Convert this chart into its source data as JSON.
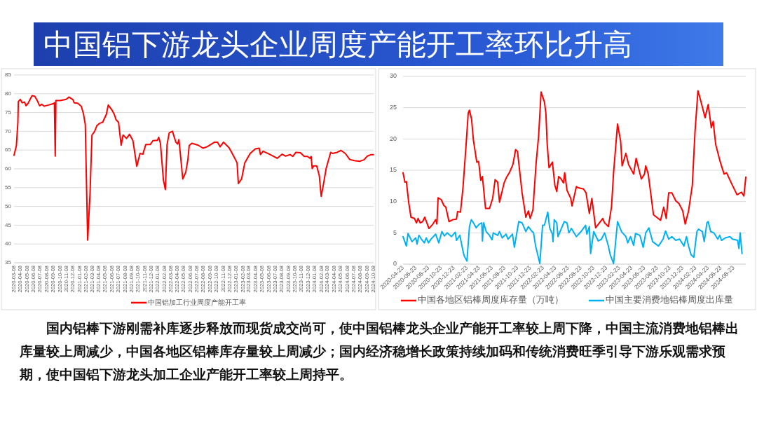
{
  "chart_data": [
    {
      "type": "other",
      "title": "中国铝下游龙头企业周度产能开工率环比升高",
      "annotations": [
        "国内铝棒下游刚需补库逐步释放而现货成交尚可，使中国铝棒龙头企业产能开工率较上周下降，中国主流消费地铝棒出库量较上周减少，中国各地区铝棒库存量较上周减少；国内经济稳增长政策持续加码和传统消费旺季引导下游乐观需求预期，使中国铝下游龙头加工企业产能开工率较上周持平。"
      ]
    },
    {
      "type": "line",
      "grid": "y",
      "legend": "bottom",
      "xlim": [
        "2020-03-08",
        "2024-10-08"
      ],
      "ylim": [
        35,
        85
      ],
      "yticks": [
        35,
        40,
        45,
        50,
        55,
        60,
        65,
        70,
        75,
        80,
        85
      ],
      "xticks": [
        "2020-03-08",
        "2020-04-08",
        "2020-05-08",
        "2020-06-08",
        "2020-07-08",
        "2020-08-08",
        "2020-09-08",
        "2020-10-08",
        "2020-11-08",
        "2020-12-08",
        "2021-01-08",
        "2021-02-08",
        "2021-03-08",
        "2021-04-08",
        "2021-05-08",
        "2021-06-08",
        "2021-07-08",
        "2021-08-08",
        "2021-09-08",
        "2021-10-08",
        "2021-11-08",
        "2021-12-08",
        "2022-01-08",
        "2022-02-08",
        "2022-03-08",
        "2022-04-08",
        "2022-05-08",
        "2022-06-08",
        "2022-07-08",
        "2022-08-08",
        "2022-09-08",
        "2022-10-08",
        "2022-11-08",
        "2022-12-08",
        "2023-01-08",
        "2023-02-08",
        "2023-03-08",
        "2023-04-08",
        "2023-05-08",
        "2023-06-08",
        "2023-07-08",
        "2023-08-08",
        "2023-09-08",
        "2023-10-08",
        "2023-11-08",
        "2023-12-08",
        "2024-01-08",
        "2024-02-08",
        "2024-03-08",
        "2024-04-08",
        "2024-05-08",
        "2024-06-08",
        "2024-07-08",
        "2024-08-08",
        "2024-09-08",
        "2024-10-08"
      ],
      "x": [
        "2020-03-08",
        "2020-03-19",
        "2020-03-26",
        "2020-03-28",
        "2020-04-06",
        "2020-04-15",
        "2020-04-26",
        "2020-05-03",
        "2020-05-12",
        "2020-05-31",
        "2020-06-13",
        "2020-06-24",
        "2020-07-05",
        "2020-07-15",
        "2020-07-26",
        "2020-08-17",
        "2020-09-08",
        "2020-09-12",
        "2020-09-16",
        "2020-09-19",
        "2020-10-09",
        "2020-11-06",
        "2020-11-19",
        "2020-12-08",
        "2020-12-13",
        "2020-12-29",
        "2021-01-15",
        "2021-01-25",
        "2021-02-03",
        "2021-02-14",
        "2021-02-25",
        "2021-03-06",
        "2021-03-18",
        "2021-03-29",
        "2021-04-10",
        "2021-04-25",
        "2021-05-12",
        "2021-05-21",
        "2021-06-09",
        "2021-06-18",
        "2021-06-27",
        "2021-07-08",
        "2021-07-20",
        "2021-07-29",
        "2021-08-14",
        "2021-08-28",
        "2021-09-13",
        "2021-10-01",
        "2021-10-16",
        "2021-10-29",
        "2021-11-12",
        "2021-12-03",
        "2021-12-15",
        "2022-01-05",
        "2022-01-11",
        "2022-01-19",
        "2022-02-02",
        "2022-02-11",
        "2022-02-19",
        "2022-03-01",
        "2022-03-16",
        "2022-04-01",
        "2022-04-09",
        "2022-04-15",
        "2022-04-21",
        "2022-05-03",
        "2022-05-17",
        "2022-05-27",
        "2022-06-02",
        "2022-06-14",
        "2022-07-14",
        "2022-08-05",
        "2022-08-25",
        "2022-09-28",
        "2022-10-12",
        "2022-10-24",
        "2022-11-09",
        "2022-12-05",
        "2022-12-26",
        "2023-01-11",
        "2023-01-17",
        "2023-02-01",
        "2023-02-16",
        "2023-03-13",
        "2023-04-06",
        "2023-04-24",
        "2023-04-30",
        "2023-05-12",
        "2023-06-11",
        "2023-07-17",
        "2023-08-09",
        "2023-08-25",
        "2023-09-15",
        "2023-09-27",
        "2023-10-12",
        "2023-11-02",
        "2023-11-20",
        "2023-12-05",
        "2023-12-17",
        "2023-12-22",
        "2023-12-27",
        "2024-01-02",
        "2024-01-17",
        "2024-01-29",
        "2024-02-07",
        "2024-02-18",
        "2024-03-01",
        "2024-03-22",
        "2024-03-30",
        "2024-04-21",
        "2024-05-09",
        "2024-05-29",
        "2024-06-19",
        "2024-07-10",
        "2024-08-03",
        "2024-08-24",
        "2024-09-09",
        "2024-09-27",
        "2024-10-07"
      ],
      "series": [
        {
          "name": "中国铝加工行业周度产能开工率",
          "color": "#ff0000",
          "values": [
            63.6,
            66.2,
            72.4,
            77.9,
            78.5,
            77.6,
            77.8,
            76.8,
            77.4,
            79.5,
            79.3,
            78.2,
            76.8,
            77.2,
            76.7,
            77.0,
            77.4,
            77.6,
            63.4,
            78.2,
            78.2,
            78.5,
            79.1,
            78.4,
            77.6,
            77.5,
            76.7,
            74.8,
            71.8,
            41.0,
            53.3,
            69.0,
            69.9,
            71.5,
            72.1,
            72.4,
            74.5,
            77.0,
            75.5,
            74.5,
            73.0,
            72.4,
            66.3,
            69.0,
            68.1,
            69.2,
            67.5,
            60.7,
            64.1,
            63.9,
            66.5,
            66.5,
            67.5,
            67.6,
            68.4,
            66.8,
            57.0,
            54.5,
            66.5,
            69.6,
            70.0,
            67.1,
            66.6,
            67.8,
            64.5,
            57.3,
            59.1,
            62.5,
            66.2,
            66.8,
            66.3,
            65.5,
            65.9,
            67.1,
            67.1,
            65.9,
            67.1,
            65.6,
            63.4,
            61.6,
            56.1,
            57.3,
            61.6,
            64.1,
            65.3,
            65.5,
            63.8,
            64.7,
            63.9,
            62.8,
            63.9,
            63.4,
            63.8,
            63.3,
            64.4,
            64.3,
            63.3,
            63.3,
            62.8,
            63.3,
            60.1,
            60.8,
            60.8,
            58.2,
            52.7,
            56.1,
            60.1,
            64.4,
            64.1,
            64.4,
            64.9,
            64.1,
            62.5,
            62.2,
            62.0,
            62.4,
            63.4,
            63.8,
            63.8
          ]
        }
      ]
    },
    {
      "type": "line",
      "grid": "y",
      "legend": "bottom",
      "xlim": [
        "2020-04-23",
        "2024-10-20"
      ],
      "ylim": [
        0,
        30
      ],
      "yticks": [
        0,
        5,
        10,
        15,
        20,
        25,
        30
      ],
      "xticks": [
        "2020-04-23",
        "2020-06-23",
        "2020-08-23",
        "2020-10-23",
        "2020-12-23",
        "2021-02-23",
        "2021-04-23",
        "2021-06-23",
        "2021-08-23",
        "2021-10-23",
        "2021-12-23",
        "2022-02-23",
        "2022-04-23",
        "2022-06-23",
        "2022-08-23",
        "2022-10-23",
        "2022-12-23",
        "2023-02-23",
        "2023-04-23",
        "2023-06-23",
        "2023-08-23",
        "2023-10-23",
        "2023-12-23",
        "2024-02-23",
        "2024-04-23",
        "2024-06-23",
        "2024-08-23"
      ],
      "series": [
        {
          "name": "中国各地区铝棒周度库存量（万吨）",
          "color": "#ff0000",
          "x": [
            "2020-04-23",
            "2020-05-02",
            "2020-05-09",
            "2020-05-20",
            "2020-05-31",
            "2020-06-17",
            "2020-06-26",
            "2020-07-04",
            "2020-07-14",
            "2020-07-26",
            "2020-08-05",
            "2020-08-25",
            "2020-09-13",
            "2020-09-26",
            "2020-10-02",
            "2020-10-08",
            "2020-10-23",
            "2020-11-04",
            "2020-11-14",
            "2020-11-29",
            "2020-12-17",
            "2021-01-04",
            "2021-01-09",
            "2021-01-23",
            "2021-02-04",
            "2021-02-20",
            "2021-03-01",
            "2021-03-07",
            "2021-03-17",
            "2021-03-26",
            "2021-04-11",
            "2021-04-20",
            "2021-04-30",
            "2021-05-08",
            "2021-05-23",
            "2021-06-11",
            "2021-06-26",
            "2021-07-08",
            "2021-07-20",
            "2021-07-29",
            "2021-08-20",
            "2021-09-01",
            "2021-09-14",
            "2021-10-01",
            "2021-10-14",
            "2021-10-23",
            "2021-11-14",
            "2021-12-02",
            "2021-12-14",
            "2021-12-23",
            "2022-01-05",
            "2022-01-20",
            "2022-02-01",
            "2022-02-13",
            "2022-03-01",
            "2022-03-08",
            "2022-03-14",
            "2022-03-23",
            "2022-04-08",
            "2022-04-20",
            "2022-04-29",
            "2022-05-08",
            "2022-05-20",
            "2022-05-31",
            "2022-06-06",
            "2022-06-17",
            "2022-07-05",
            "2022-07-11",
            "2022-08-01",
            "2022-08-10",
            "2022-09-04",
            "2022-09-16",
            "2022-10-02",
            "2022-10-14",
            "2022-11-01",
            "2022-11-10",
            "2022-12-05",
            "2022-12-14",
            "2023-01-01",
            "2023-01-16",
            "2023-01-26",
            "2023-02-14",
            "2023-03-01",
            "2023-03-08",
            "2023-03-26",
            "2023-04-08",
            "2023-05-02",
            "2023-05-14",
            "2023-06-08",
            "2023-06-23",
            "2023-06-29",
            "2023-07-11",
            "2023-08-05",
            "2023-08-20",
            "2023-09-08",
            "2023-09-23",
            "2023-10-05",
            "2023-10-17",
            "2023-11-01",
            "2023-11-20",
            "2023-12-05",
            "2023-12-23",
            "2024-01-04",
            "2024-01-20",
            "2024-02-07",
            "2024-02-20",
            "2024-03-05",
            "2024-03-20",
            "2024-04-08",
            "2024-04-23",
            "2024-05-08",
            "2024-05-17",
            "2024-05-29",
            "2024-06-20",
            "2024-07-08",
            "2024-07-20",
            "2024-08-14",
            "2024-09-08",
            "2024-09-29",
            "2024-10-11",
            "2024-10-20"
          ],
          "values": [
            14.6,
            13.1,
            13.2,
            9.9,
            7.5,
            7.3,
            6.6,
            7.3,
            6.6,
            6.8,
            7.5,
            5.7,
            6.4,
            7.1,
            6.4,
            10.6,
            10.3,
            9.4,
            9.1,
            6.8,
            7.1,
            7.2,
            8.4,
            8.3,
            12.2,
            19.6,
            24.1,
            24.6,
            23.2,
            19.8,
            16.3,
            16.4,
            13.4,
            14.0,
            8.9,
            8.9,
            10.5,
            13.5,
            13.1,
            9.9,
            13.0,
            13.9,
            14.6,
            15.9,
            18.3,
            18.0,
            11.4,
            7.5,
            8.5,
            7.3,
            8.7,
            16.1,
            20.4,
            27.5,
            25.9,
            24.1,
            19.3,
            15.4,
            16.3,
            12.6,
            11.6,
            14.0,
            13.6,
            13.0,
            14.6,
            11.8,
            10.5,
            9.3,
            12.4,
            12.2,
            12.0,
            11.4,
            8.1,
            10.5,
            5.8,
            6.2,
            7.3,
            6.6,
            6.0,
            9.1,
            14.6,
            22.4,
            19.6,
            15.7,
            17.7,
            15.9,
            14.4,
            16.9,
            13.6,
            14.4,
            15.7,
            14.4,
            7.9,
            7.5,
            7.0,
            9.1,
            7.3,
            11.4,
            11.4,
            10.1,
            9.7,
            8.5,
            6.4,
            8.5,
            12.6,
            21.2,
            27.7,
            25.9,
            23.4,
            25.5,
            21.8,
            22.8,
            19.1,
            16.3,
            14.4,
            14.6,
            12.8,
            11.1,
            11.5,
            10.9,
            13.9
          ]
        },
        {
          "name": "中国主要消费地铝棒周度出库量",
          "color": "#00b0f0",
          "x": [
            "2020-04-23",
            "2020-05-09",
            "2020-05-17",
            "2020-06-05",
            "2020-06-23",
            "2020-06-29",
            "2020-07-08",
            "2020-07-20",
            "2020-08-03",
            "2020-08-12",
            "2020-08-23",
            "2020-09-04",
            "2020-09-26",
            "2020-10-11",
            "2020-10-26",
            "2020-11-07",
            "2020-11-20",
            "2020-12-11",
            "2020-12-29",
            "2021-01-04",
            "2021-01-20",
            "2021-02-04",
            "2021-02-10",
            "2021-02-23",
            "2021-03-07",
            "2021-03-16",
            "2021-03-26",
            "2021-04-08",
            "2021-04-23",
            "2021-05-05",
            "2021-05-08",
            "2021-05-14",
            "2021-05-26",
            "2021-06-11",
            "2021-06-23",
            "2021-06-29",
            "2021-07-20",
            "2021-07-29",
            "2021-08-11",
            "2021-08-29",
            "2021-09-08",
            "2021-09-29",
            "2021-10-08",
            "2021-10-29",
            "2021-11-14",
            "2021-12-02",
            "2021-12-14",
            "2022-01-01",
            "2022-01-08",
            "2022-01-17",
            "2022-02-07",
            "2022-02-20",
            "2022-03-01",
            "2022-03-17",
            "2022-03-26",
            "2022-04-08",
            "2022-04-11",
            "2022-04-17",
            "2022-04-29",
            "2022-05-05",
            "2022-05-20",
            "2022-06-04",
            "2022-06-17",
            "2022-06-26",
            "2022-07-08",
            "2022-08-01",
            "2022-08-23",
            "2022-09-14",
            "2022-09-20",
            "2022-10-02",
            "2022-10-08",
            "2022-10-23",
            "2022-11-14",
            "2022-11-29",
            "2022-12-14",
            "2023-01-01",
            "2023-01-10",
            "2023-01-26",
            "2023-02-14",
            "2023-03-05",
            "2023-03-26",
            "2023-04-04",
            "2023-04-17",
            "2023-05-02",
            "2023-05-11",
            "2023-06-01",
            "2023-06-17",
            "2023-06-29",
            "2023-07-14",
            "2023-08-01",
            "2023-08-29",
            "2023-09-20",
            "2023-10-02",
            "2023-10-17",
            "2023-11-01",
            "2023-11-20",
            "2023-12-08",
            "2023-12-29",
            "2024-01-10",
            "2024-01-20",
            "2024-02-01",
            "2024-02-14",
            "2024-02-29",
            "2024-03-08",
            "2024-03-26",
            "2024-04-04",
            "2024-04-17",
            "2024-04-23",
            "2024-05-05",
            "2024-05-20",
            "2024-06-08",
            "2024-06-17",
            "2024-06-26",
            "2024-07-14",
            "2024-08-05",
            "2024-08-17",
            "2024-09-11",
            "2024-09-17",
            "2024-09-23",
            "2024-10-02"
          ],
          "values": [
            4.4,
            2.9,
            4.9,
            3.6,
            4.2,
            3.2,
            4.6,
            4.0,
            3.4,
            4.2,
            3.4,
            4.0,
            4.8,
            3.4,
            5.2,
            4.5,
            5.0,
            4.4,
            5.1,
            3.8,
            4.6,
            2.1,
            1.3,
            0.5,
            6.0,
            7.1,
            6.6,
            5.8,
            6.4,
            6.6,
            3.7,
            6.6,
            5.2,
            4.6,
            3.9,
            5.0,
            4.6,
            5.2,
            4.2,
            4.8,
            4.0,
            4.8,
            2.7,
            6.8,
            6.6,
            5.2,
            6.0,
            5.2,
            5.0,
            3.0,
            0.1,
            6.2,
            6.2,
            8.3,
            5.8,
            4.8,
            3.6,
            7.1,
            6.6,
            4.4,
            5.6,
            6.8,
            6.6,
            5.0,
            5.7,
            4.4,
            5.2,
            6.2,
            4.8,
            6.0,
            1.7,
            5.2,
            3.7,
            4.0,
            5.0,
            2.9,
            1.5,
            0.1,
            6.8,
            5.2,
            4.4,
            3.4,
            4.4,
            3.0,
            4.9,
            4.6,
            2.7,
            5.0,
            5.8,
            3.6,
            2.9,
            4.0,
            5.3,
            4.0,
            4.4,
            3.8,
            4.0,
            2.9,
            4.4,
            2.9,
            1.5,
            1.1,
            5.2,
            5.6,
            5.2,
            3.6,
            6.6,
            6.8,
            5.2,
            5.0,
            4.0,
            4.6,
            3.8,
            4.2,
            4.4,
            4.0,
            3.8,
            2.5,
            5.0,
            1.7
          ]
        }
      ]
    }
  ]
}
